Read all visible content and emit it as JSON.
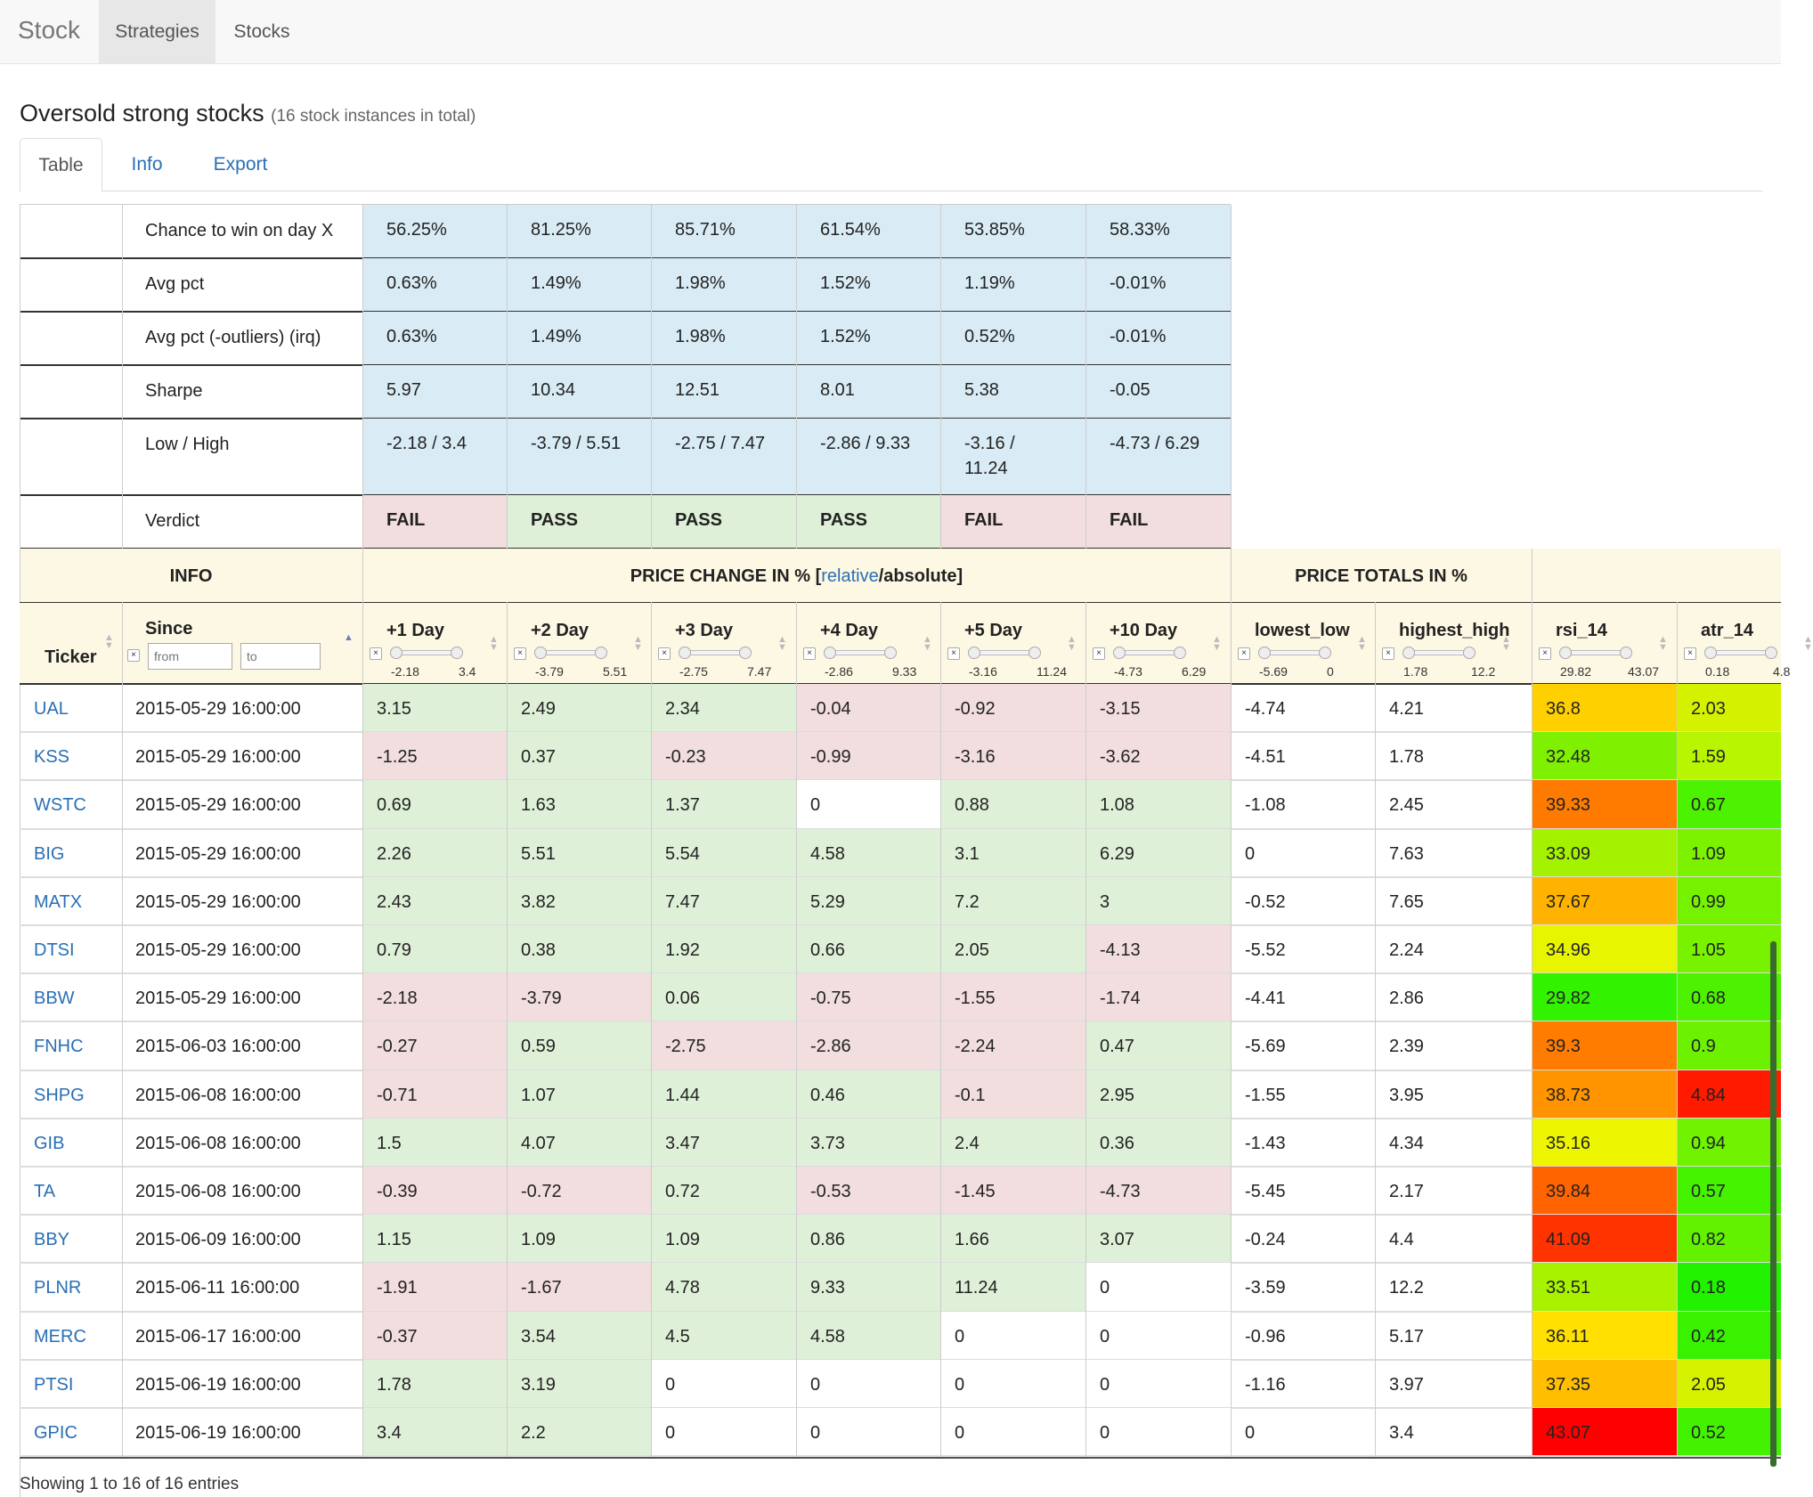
{
  "navbar": {
    "brand": "Stock",
    "items": [
      "Strategies",
      "Stocks"
    ],
    "active": "Strategies"
  },
  "page": {
    "title": "Oversold strong stocks",
    "subtitle": "(16 stock instances in total)"
  },
  "tabs": [
    "Table",
    "Info",
    "Export"
  ],
  "summary": {
    "rows": [
      {
        "label": "Chance to win on day X",
        "values": [
          "56.25%",
          "81.25%",
          "85.71%",
          "61.54%",
          "53.85%",
          "58.33%"
        ]
      },
      {
        "label": "Avg pct",
        "values": [
          "0.63%",
          "1.49%",
          "1.98%",
          "1.52%",
          "1.19%",
          "-0.01%"
        ]
      },
      {
        "label": "Avg pct (-outliers) (irq)",
        "values": [
          "0.63%",
          "1.49%",
          "1.98%",
          "1.52%",
          "0.52%",
          "-0.01%"
        ]
      },
      {
        "label": "Sharpe",
        "values": [
          "5.97",
          "10.34",
          "12.51",
          "8.01",
          "5.38",
          "-0.05"
        ]
      },
      {
        "label": "Low / High",
        "values": [
          "-2.18 / 3.4",
          "-3.79 / 5.51",
          "-2.75 / 7.47",
          "-2.86 / 9.33",
          "-3.16 /\n11.24",
          "-4.73 / 6.29"
        ]
      },
      {
        "label": "Verdict",
        "values": [
          "FAIL",
          "PASS",
          "PASS",
          "PASS",
          "FAIL",
          "FAIL"
        ]
      }
    ]
  },
  "groups": {
    "info": "INFO",
    "price_change": "PRICE CHANGE IN %",
    "relative_link": "relative",
    "absolute": "absolute",
    "price_totals": "PRICE TOTALS IN %"
  },
  "columns": {
    "ticker": "Ticker",
    "since": "Since",
    "since_from_placeholder": "from",
    "since_to_placeholder": "to",
    "filters": [
      {
        "name": "+1 Day",
        "min": "-2.18",
        "max": "3.4"
      },
      {
        "name": "+2 Day",
        "min": "-3.79",
        "max": "5.51"
      },
      {
        "name": "+3 Day",
        "min": "-2.75",
        "max": "7.47"
      },
      {
        "name": "+4 Day",
        "min": "-2.86",
        "max": "9.33"
      },
      {
        "name": "+5 Day",
        "min": "-3.16",
        "max": "11.24"
      },
      {
        "name": "+10 Day",
        "min": "-4.73",
        "max": "6.29"
      },
      {
        "name": "lowest_low",
        "min": "-5.69",
        "max": "0"
      },
      {
        "name": "highest_high",
        "min": "1.78",
        "max": "12.2"
      },
      {
        "name": "rsi_14",
        "min": "29.82",
        "max": "43.07"
      },
      {
        "name": "atr_14",
        "min": "0.18",
        "max": "4.8"
      }
    ]
  },
  "rows": [
    {
      "ticker": "UAL",
      "since": "2015-05-29 16:00:00",
      "d": [
        "3.15",
        "2.49",
        "2.34",
        "-0.04",
        "-0.92",
        "-3.15"
      ],
      "low": "-4.74",
      "high": "4.21",
      "rsi": "36.8",
      "atr": "2.03",
      "rsi_color": "#ffd000",
      "atr_color": "#d4f200"
    },
    {
      "ticker": "KSS",
      "since": "2015-05-29 16:00:00",
      "d": [
        "-1.25",
        "0.37",
        "-0.23",
        "-0.99",
        "-3.16",
        "-3.62"
      ],
      "low": "-4.51",
      "high": "1.78",
      "rsi": "32.48",
      "atr": "1.59",
      "rsi_color": "#7ff000",
      "atr_color": "#b7f500"
    },
    {
      "ticker": "WSTC",
      "since": "2015-05-29 16:00:00",
      "d": [
        "0.69",
        "1.63",
        "1.37",
        "0",
        "0.88",
        "1.08"
      ],
      "low": "-1.08",
      "high": "2.45",
      "rsi": "39.33",
      "atr": "0.67",
      "rsi_color": "#ff7b00",
      "atr_color": "#4cf200"
    },
    {
      "ticker": "BIG",
      "since": "2015-05-29 16:00:00",
      "d": [
        "2.26",
        "5.51",
        "5.54",
        "4.58",
        "3.1",
        "6.29"
      ],
      "low": "0",
      "high": "7.63",
      "rsi": "33.09",
      "atr": "1.09",
      "rsi_color": "#a4f200",
      "atr_color": "#7cf200"
    },
    {
      "ticker": "MATX",
      "since": "2015-05-29 16:00:00",
      "d": [
        "2.43",
        "3.82",
        "7.47",
        "5.29",
        "7.2",
        "3"
      ],
      "low": "-0.52",
      "high": "7.65",
      "rsi": "37.67",
      "atr": "0.99",
      "rsi_color": "#ffb300",
      "atr_color": "#74f200"
    },
    {
      "ticker": "DTSI",
      "since": "2015-05-29 16:00:00",
      "d": [
        "0.79",
        "0.38",
        "1.92",
        "0.66",
        "2.05",
        "-4.13"
      ],
      "low": "-5.52",
      "high": "2.24",
      "rsi": "34.96",
      "atr": "1.05",
      "rsi_color": "#e8f500",
      "atr_color": "#79f200"
    },
    {
      "ticker": "BBW",
      "since": "2015-05-29 16:00:00",
      "d": [
        "-2.18",
        "-3.79",
        "0.06",
        "-0.75",
        "-1.55",
        "-1.74"
      ],
      "low": "-4.41",
      "high": "2.86",
      "rsi": "29.82",
      "atr": "0.68",
      "rsi_color": "#33f200",
      "atr_color": "#4cf200"
    },
    {
      "ticker": "FNHC",
      "since": "2015-06-03 16:00:00",
      "d": [
        "-0.27",
        "0.59",
        "-2.75",
        "-2.86",
        "-2.24",
        "0.47"
      ],
      "low": "-5.69",
      "high": "2.39",
      "rsi": "39.3",
      "atr": "0.9",
      "rsi_color": "#ff7c00",
      "atr_color": "#6cf200"
    },
    {
      "ticker": "SHPG",
      "since": "2015-06-08 16:00:00",
      "d": [
        "-0.71",
        "1.07",
        "1.44",
        "0.46",
        "-0.1",
        "2.95"
      ],
      "low": "-1.55",
      "high": "3.95",
      "rsi": "38.73",
      "atr": "4.84",
      "rsi_color": "#ff9400",
      "atr_color": "#ff1a00"
    },
    {
      "ticker": "GIB",
      "since": "2015-06-08 16:00:00",
      "d": [
        "1.5",
        "4.07",
        "3.47",
        "3.73",
        "2.4",
        "0.36"
      ],
      "low": "-1.43",
      "high": "4.34",
      "rsi": "35.16",
      "atr": "0.94",
      "rsi_color": "#eef500",
      "atr_color": "#70f200"
    },
    {
      "ticker": "TA",
      "since": "2015-06-08 16:00:00",
      "d": [
        "-0.39",
        "-0.72",
        "0.72",
        "-0.53",
        "-1.45",
        "-4.73"
      ],
      "low": "-5.45",
      "high": "2.17",
      "rsi": "39.84",
      "atr": "0.57",
      "rsi_color": "#ff6400",
      "atr_color": "#45f200"
    },
    {
      "ticker": "BBY",
      "since": "2015-06-09 16:00:00",
      "d": [
        "1.15",
        "1.09",
        "1.09",
        "0.86",
        "1.66",
        "3.07"
      ],
      "low": "-0.24",
      "high": "4.4",
      "rsi": "41.09",
      "atr": "0.82",
      "rsi_color": "#ff3300",
      "atr_color": "#62f200"
    },
    {
      "ticker": "PLNR",
      "since": "2015-06-11 16:00:00",
      "d": [
        "-1.91",
        "-1.67",
        "4.78",
        "9.33",
        "11.24",
        "0"
      ],
      "low": "-3.59",
      "high": "12.2",
      "rsi": "33.51",
      "atr": "0.18",
      "rsi_color": "#a8f200",
      "atr_color": "#22f200"
    },
    {
      "ticker": "MERC",
      "since": "2015-06-17 16:00:00",
      "d": [
        "-0.37",
        "3.54",
        "4.5",
        "4.58",
        "0",
        "0"
      ],
      "low": "-0.96",
      "high": "5.17",
      "rsi": "36.11",
      "atr": "0.42",
      "rsi_color": "#ffe000",
      "atr_color": "#38f200"
    },
    {
      "ticker": "PTSI",
      "since": "2015-06-19 16:00:00",
      "d": [
        "1.78",
        "3.19",
        "0",
        "0",
        "0",
        "0"
      ],
      "low": "-1.16",
      "high": "3.97",
      "rsi": "37.35",
      "atr": "2.05",
      "rsi_color": "#ffbe00",
      "atr_color": "#d6f200"
    },
    {
      "ticker": "GPIC",
      "since": "2015-06-19 16:00:00",
      "d": [
        "3.4",
        "2.2",
        "0",
        "0",
        "0",
        "0"
      ],
      "low": "0",
      "high": "3.4",
      "rsi": "43.07",
      "atr": "0.52",
      "rsi_color": "#ff0000",
      "atr_color": "#42f200"
    }
  ],
  "footer": "Showing 1 to 16 of 16 entries",
  "colors": {
    "summary_blue": "#d9ecf5",
    "pass_green": "#dff0d8",
    "fail_red": "#f2dede",
    "header_cream": "#fcf8e3",
    "link_blue": "#2a6fb5"
  }
}
